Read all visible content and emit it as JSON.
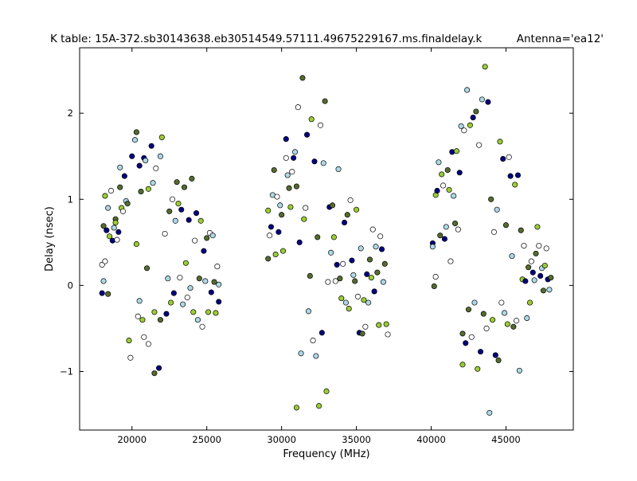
{
  "chart_data": {
    "type": "scatter",
    "title": "K table: 15A-372.sb30143638.eb30514549.57111.49675229167.ms.finaldelay.k",
    "subtitle": "Antenna='ea12'",
    "xlabel": "Frequency (MHz)",
    "ylabel": "Delay (nsec)",
    "xlim": [
      16500,
      49500
    ],
    "ylim": [
      -1.68,
      2.76
    ],
    "x_ticks": [
      20000,
      25000,
      30000,
      35000,
      40000,
      45000
    ],
    "y_ticks": [
      -1,
      0,
      1,
      2
    ],
    "grid": false,
    "legend": "none",
    "marker": "circle",
    "palette": [
      "#ffffff",
      "#ff0000",
      "#00ff00",
      "#0000ff",
      "#ffff00",
      "#ff00ff",
      "#00ffff",
      "#000080",
      "#800000",
      "#008000",
      "#ff8c00",
      "#808080",
      "#90ee90",
      "#ffa07a",
      "#add8e6",
      "#9400d3",
      "#228b22",
      "#8b4513",
      "#ffd700",
      "#00ced1",
      "#ff1493",
      "#556b2f",
      "#daa520",
      "#b0c4de",
      "#ffb6c1",
      "#8fbc8f",
      "#4682b4",
      "#d2691e",
      "#9acd32",
      "#20b2aa",
      "#dda0dd",
      "#00bfff",
      "#e9967a",
      "#008b8b",
      "#7fffd4"
    ],
    "points": [
      {
        "x": 18000,
        "y": 0.24
      },
      {
        "x": 18000,
        "y": -0.09
      },
      {
        "x": 18100,
        "y": 0.05
      },
      {
        "x": 18100,
        "y": 0.69
      },
      {
        "x": 18200,
        "y": 1.04
      },
      {
        "x": 18200,
        "y": 0.28
      },
      {
        "x": 18300,
        "y": 0.64
      },
      {
        "x": 18400,
        "y": 0.9
      },
      {
        "x": 18400,
        "y": -0.1
      },
      {
        "x": 18500,
        "y": 0.57
      },
      {
        "x": 18600,
        "y": 1.1
      },
      {
        "x": 18700,
        "y": 0.52
      },
      {
        "x": 18800,
        "y": 0.67
      },
      {
        "x": 18900,
        "y": 0.77
      },
      {
        "x": 18900,
        "y": 0.73
      },
      {
        "x": 19000,
        "y": 0.53
      },
      {
        "x": 19100,
        "y": 0.62
      },
      {
        "x": 19200,
        "y": 1.37
      },
      {
        "x": 19200,
        "y": 1.14
      },
      {
        "x": 19300,
        "y": 0.9
      },
      {
        "x": 19400,
        "y": 0.86
      },
      {
        "x": 19500,
        "y": 1.27
      },
      {
        "x": 19600,
        "y": 0.98
      },
      {
        "x": 19700,
        "y": 0.95
      },
      {
        "x": 19800,
        "y": -0.64
      },
      {
        "x": 19900,
        "y": -0.84
      },
      {
        "x": 20000,
        "y": 1.5
      },
      {
        "x": 20200,
        "y": 1.69
      },
      {
        "x": 20300,
        "y": 1.78
      },
      {
        "x": 20300,
        "y": 0.48
      },
      {
        "x": 20400,
        "y": -0.36
      },
      {
        "x": 20500,
        "y": 1.39
      },
      {
        "x": 20500,
        "y": -0.18
      },
      {
        "x": 20600,
        "y": 1.09
      },
      {
        "x": 20700,
        "y": -0.4
      },
      {
        "x": 20800,
        "y": -0.6
      },
      {
        "x": 20800,
        "y": 1.48
      },
      {
        "x": 20900,
        "y": 1.45
      },
      {
        "x": 21000,
        "y": 0.2
      },
      {
        "x": 21100,
        "y": 1.12
      },
      {
        "x": 21100,
        "y": -0.68
      },
      {
        "x": 21300,
        "y": 1.62
      },
      {
        "x": 21400,
        "y": 1.19
      },
      {
        "x": 21500,
        "y": -1.02
      },
      {
        "x": 21500,
        "y": -0.31
      },
      {
        "x": 21600,
        "y": 1.36
      },
      {
        "x": 21800,
        "y": -0.96
      },
      {
        "x": 21900,
        "y": 1.5
      },
      {
        "x": 21900,
        "y": -0.4
      },
      {
        "x": 22000,
        "y": 1.72
      },
      {
        "x": 22200,
        "y": 0.6
      },
      {
        "x": 22300,
        "y": -0.33
      },
      {
        "x": 22400,
        "y": 0.08
      },
      {
        "x": 22500,
        "y": 0.86
      },
      {
        "x": 22600,
        "y": -0.2
      },
      {
        "x": 22700,
        "y": 1.0
      },
      {
        "x": 22800,
        "y": -0.09
      },
      {
        "x": 22900,
        "y": 0.75
      },
      {
        "x": 23000,
        "y": 1.2
      },
      {
        "x": 23100,
        "y": 0.95
      },
      {
        "x": 23200,
        "y": 0.09
      },
      {
        "x": 23300,
        "y": 0.88
      },
      {
        "x": 23400,
        "y": -0.22
      },
      {
        "x": 23500,
        "y": 1.14
      },
      {
        "x": 23600,
        "y": 0.26
      },
      {
        "x": 23700,
        "y": -0.14
      },
      {
        "x": 23800,
        "y": 0.76
      },
      {
        "x": 23900,
        "y": -0.03
      },
      {
        "x": 24000,
        "y": 1.24
      },
      {
        "x": 24100,
        "y": -0.31
      },
      {
        "x": 24200,
        "y": 0.52
      },
      {
        "x": 24300,
        "y": 0.84
      },
      {
        "x": 24400,
        "y": -0.4
      },
      {
        "x": 24500,
        "y": 0.08
      },
      {
        "x": 24600,
        "y": 0.75
      },
      {
        "x": 24700,
        "y": -0.48
      },
      {
        "x": 24800,
        "y": 0.4
      },
      {
        "x": 24900,
        "y": 0.05
      },
      {
        "x": 25000,
        "y": 0.55
      },
      {
        "x": 25100,
        "y": -0.31
      },
      {
        "x": 25200,
        "y": 0.61
      },
      {
        "x": 25300,
        "y": -0.08
      },
      {
        "x": 25400,
        "y": 0.58
      },
      {
        "x": 25500,
        "y": 0.04
      },
      {
        "x": 25600,
        "y": -0.32
      },
      {
        "x": 25700,
        "y": 0.22
      },
      {
        "x": 25800,
        "y": -0.19
      },
      {
        "x": 25800,
        "y": 0.01
      },
      {
        "x": 29100,
        "y": 0.31
      },
      {
        "x": 29100,
        "y": 0.87
      },
      {
        "x": 29200,
        "y": 0.58
      },
      {
        "x": 29300,
        "y": 0.68
      },
      {
        "x": 29400,
        "y": 1.05
      },
      {
        "x": 29500,
        "y": 1.34
      },
      {
        "x": 29600,
        "y": 0.36
      },
      {
        "x": 29700,
        "y": 1.03
      },
      {
        "x": 29800,
        "y": 0.62
      },
      {
        "x": 29900,
        "y": 0.93
      },
      {
        "x": 30000,
        "y": 0.82
      },
      {
        "x": 30100,
        "y": 0.4
      },
      {
        "x": 30300,
        "y": 1.48
      },
      {
        "x": 30300,
        "y": 1.7
      },
      {
        "x": 30400,
        "y": 1.28
      },
      {
        "x": 30500,
        "y": 1.13
      },
      {
        "x": 30600,
        "y": 0.91
      },
      {
        "x": 30700,
        "y": 1.32
      },
      {
        "x": 30800,
        "y": 1.48
      },
      {
        "x": 30900,
        "y": 1.55
      },
      {
        "x": 31000,
        "y": 1.15
      },
      {
        "x": 31000,
        "y": -1.42
      },
      {
        "x": 31100,
        "y": 2.07
      },
      {
        "x": 31200,
        "y": 0.5
      },
      {
        "x": 31300,
        "y": -0.79
      },
      {
        "x": 31400,
        "y": 2.41
      },
      {
        "x": 31500,
        "y": 0.77
      },
      {
        "x": 31600,
        "y": 0.9
      },
      {
        "x": 31700,
        "y": 1.75
      },
      {
        "x": 31800,
        "y": -0.3
      },
      {
        "x": 31900,
        "y": 0.11
      },
      {
        "x": 32000,
        "y": 1.93
      },
      {
        "x": 32100,
        "y": -0.64
      },
      {
        "x": 32200,
        "y": 1.44
      },
      {
        "x": 32300,
        "y": -0.82
      },
      {
        "x": 32400,
        "y": 0.56
      },
      {
        "x": 32500,
        "y": -1.4
      },
      {
        "x": 32600,
        "y": 1.86
      },
      {
        "x": 32700,
        "y": -0.55
      },
      {
        "x": 32800,
        "y": 1.42
      },
      {
        "x": 32900,
        "y": 2.14
      },
      {
        "x": 33000,
        "y": -1.23
      },
      {
        "x": 33100,
        "y": 0.04
      },
      {
        "x": 33200,
        "y": 0.91
      },
      {
        "x": 33300,
        "y": 0.38
      },
      {
        "x": 33400,
        "y": 0.93
      },
      {
        "x": 33500,
        "y": 0.56
      },
      {
        "x": 33600,
        "y": 0.05
      },
      {
        "x": 33700,
        "y": 0.24
      },
      {
        "x": 33800,
        "y": 1.35
      },
      {
        "x": 33900,
        "y": 0.08
      },
      {
        "x": 34000,
        "y": -0.15
      },
      {
        "x": 34100,
        "y": 0.25
      },
      {
        "x": 34200,
        "y": 0.73
      },
      {
        "x": 34300,
        "y": -0.2
      },
      {
        "x": 34400,
        "y": 0.82
      },
      {
        "x": 34500,
        "y": -0.27
      },
      {
        "x": 34600,
        "y": 0.99
      },
      {
        "x": 34700,
        "y": 0.29
      },
      {
        "x": 34800,
        "y": 0.12
      },
      {
        "x": 34900,
        "y": 0.05
      },
      {
        "x": 35000,
        "y": 0.88
      },
      {
        "x": 35100,
        "y": -0.13
      },
      {
        "x": 35200,
        "y": -0.55
      },
      {
        "x": 35300,
        "y": 0.43
      },
      {
        "x": 35400,
        "y": -0.56
      },
      {
        "x": 35500,
        "y": -0.17
      },
      {
        "x": 35600,
        "y": -0.48
      },
      {
        "x": 35700,
        "y": 0.13
      },
      {
        "x": 35800,
        "y": -0.2
      },
      {
        "x": 35900,
        "y": 0.3
      },
      {
        "x": 36000,
        "y": 0.09
      },
      {
        "x": 36100,
        "y": 0.65
      },
      {
        "x": 36200,
        "y": -0.07
      },
      {
        "x": 36300,
        "y": 0.45
      },
      {
        "x": 36400,
        "y": 0.15
      },
      {
        "x": 36500,
        "y": -0.46
      },
      {
        "x": 36600,
        "y": 0.57
      },
      {
        "x": 36700,
        "y": 0.42
      },
      {
        "x": 36800,
        "y": 0.04
      },
      {
        "x": 36900,
        "y": 0.25
      },
      {
        "x": 37000,
        "y": -0.45
      },
      {
        "x": 37100,
        "y": -0.57
      },
      {
        "x": 40100,
        "y": 0.49
      },
      {
        "x": 40100,
        "y": 0.45
      },
      {
        "x": 40200,
        "y": -0.01
      },
      {
        "x": 40300,
        "y": 1.05
      },
      {
        "x": 40300,
        "y": 0.1
      },
      {
        "x": 40400,
        "y": 1.1
      },
      {
        "x": 40500,
        "y": 1.43
      },
      {
        "x": 40600,
        "y": 0.58
      },
      {
        "x": 40700,
        "y": 1.29
      },
      {
        "x": 40800,
        "y": 1.16
      },
      {
        "x": 40900,
        "y": 0.54
      },
      {
        "x": 41000,
        "y": 0.68
      },
      {
        "x": 41100,
        "y": 1.34
      },
      {
        "x": 41200,
        "y": 1.11
      },
      {
        "x": 41300,
        "y": 0.28
      },
      {
        "x": 41400,
        "y": 1.55
      },
      {
        "x": 41500,
        "y": 1.04
      },
      {
        "x": 41600,
        "y": 0.72
      },
      {
        "x": 41700,
        "y": 1.56
      },
      {
        "x": 41800,
        "y": 0.65
      },
      {
        "x": 41900,
        "y": 1.31
      },
      {
        "x": 42000,
        "y": 1.85
      },
      {
        "x": 42100,
        "y": -0.56
      },
      {
        "x": 42100,
        "y": -0.92
      },
      {
        "x": 42200,
        "y": 1.8
      },
      {
        "x": 42300,
        "y": -0.67
      },
      {
        "x": 42400,
        "y": 2.27
      },
      {
        "x": 42500,
        "y": -0.28
      },
      {
        "x": 42600,
        "y": 1.86
      },
      {
        "x": 42700,
        "y": -0.6
      },
      {
        "x": 42800,
        "y": 1.95
      },
      {
        "x": 42900,
        "y": -0.2
      },
      {
        "x": 43000,
        "y": 2.02
      },
      {
        "x": 43100,
        "y": -0.97
      },
      {
        "x": 43200,
        "y": 1.63
      },
      {
        "x": 43300,
        "y": -0.77
      },
      {
        "x": 43400,
        "y": 2.16
      },
      {
        "x": 43500,
        "y": -0.33
      },
      {
        "x": 43600,
        "y": 2.54
      },
      {
        "x": 43700,
        "y": -0.5
      },
      {
        "x": 43800,
        "y": 2.13
      },
      {
        "x": 43900,
        "y": -1.48
      },
      {
        "x": 44000,
        "y": 1.0
      },
      {
        "x": 44100,
        "y": -0.4
      },
      {
        "x": 44200,
        "y": 0.62
      },
      {
        "x": 44300,
        "y": -0.81
      },
      {
        "x": 44400,
        "y": 0.88
      },
      {
        "x": 44500,
        "y": -0.87
      },
      {
        "x": 44600,
        "y": 1.67
      },
      {
        "x": 44700,
        "y": -0.2
      },
      {
        "x": 44800,
        "y": 1.47
      },
      {
        "x": 44900,
        "y": -0.32
      },
      {
        "x": 45000,
        "y": 0.7
      },
      {
        "x": 45100,
        "y": -0.45
      },
      {
        "x": 45200,
        "y": 1.49
      },
      {
        "x": 45300,
        "y": 1.27
      },
      {
        "x": 45400,
        "y": 0.34
      },
      {
        "x": 45500,
        "y": -0.48
      },
      {
        "x": 45600,
        "y": 1.17
      },
      {
        "x": 45700,
        "y": -0.41
      },
      {
        "x": 45800,
        "y": 1.28
      },
      {
        "x": 45900,
        "y": -0.99
      },
      {
        "x": 46000,
        "y": 0.64
      },
      {
        "x": 46100,
        "y": 0.07
      },
      {
        "x": 46200,
        "y": 0.46
      },
      {
        "x": 46300,
        "y": 0.05
      },
      {
        "x": 46400,
        "y": -0.38
      },
      {
        "x": 46500,
        "y": 0.21
      },
      {
        "x": 46600,
        "y": -0.2
      },
      {
        "x": 46700,
        "y": 0.28
      },
      {
        "x": 46800,
        "y": 0.15
      },
      {
        "x": 46900,
        "y": 0.06
      },
      {
        "x": 47000,
        "y": 0.37
      },
      {
        "x": 47100,
        "y": 0.68
      },
      {
        "x": 47200,
        "y": 0.46
      },
      {
        "x": 47300,
        "y": 0.11
      },
      {
        "x": 47400,
        "y": 0.2
      },
      {
        "x": 47500,
        "y": -0.06
      },
      {
        "x": 47600,
        "y": 0.23
      },
      {
        "x": 47700,
        "y": 0.43
      },
      {
        "x": 47800,
        "y": 0.07
      },
      {
        "x": 47900,
        "y": -0.05
      },
      {
        "x": 48000,
        "y": 0.09
      }
    ]
  }
}
